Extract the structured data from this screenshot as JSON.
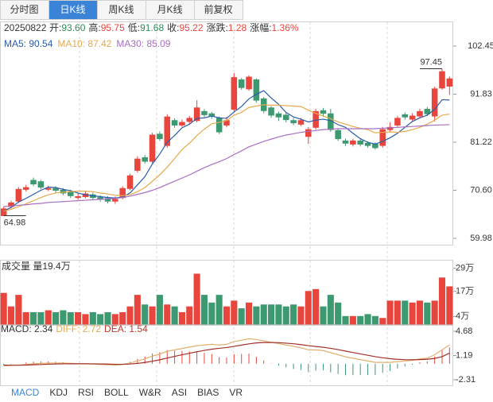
{
  "tabs": {
    "items": [
      "分时图",
      "日K线",
      "周K线",
      "月K线",
      "前复权"
    ],
    "active": 1
  },
  "info": {
    "date": "20250822",
    "fields": [
      {
        "label": "开:",
        "value": "93.60",
        "color": "#2e8b57"
      },
      {
        "label": "高:",
        "value": "95.75",
        "color": "#e8453c"
      },
      {
        "label": "低:",
        "value": "91.68",
        "color": "#2e8b57"
      },
      {
        "label": "收:",
        "value": "95.22",
        "color": "#e8453c"
      },
      {
        "label": "涨跌:",
        "value": "1.28",
        "color": "#e8453c"
      },
      {
        "label": "涨幅:",
        "value": "1.36%",
        "color": "#e8453c"
      }
    ]
  },
  "chart_data": [
    {
      "type": "candlestick",
      "ylim": [
        58.58,
        107.72
      ],
      "yticks": [
        102.45,
        91.83,
        81.22,
        {
          "value": 70.6,
          "label": "70.60"
        },
        59.98
      ],
      "up_color": "#e8453c",
      "down_color": "#3d9970",
      "opens": [
        65.0,
        67.0,
        68.2,
        70.8,
        72.8,
        72.5,
        71.0,
        71.0,
        70.6,
        70.2,
        69.0,
        69.2,
        69.6,
        69.0,
        68.8,
        68.2,
        69.0,
        71.0,
        75.0,
        77.8,
        77.0,
        83.0,
        80.5,
        86.0,
        85.0,
        85.8,
        86.0,
        88.0,
        87.5,
        86.5,
        85.0,
        88.5,
        95.0,
        93.0,
        95.0,
        90.8,
        88.8,
        87.5,
        87.2,
        86.0,
        85.2,
        82.5,
        84.5,
        88.2,
        87.5,
        83.8,
        81.5,
        80.8,
        81.5,
        81.0,
        80.8,
        80.5,
        84.0,
        85.0,
        87.3,
        86.3,
        87.0,
        88.5,
        87.0,
        93.2,
        93.6
      ],
      "highs": [
        67.0,
        68.3,
        71.3,
        71.8,
        73.4,
        72.9,
        71.6,
        71.5,
        71.1,
        70.7,
        69.9,
        70.4,
        70.1,
        69.5,
        69.3,
        69.2,
        71.5,
        74.3,
        78.1,
        78.4,
        83.3,
        83.6,
        87.4,
        86.5,
        86.2,
        87.0,
        90.5,
        88.5,
        87.9,
        86.9,
        86.8,
        96.5,
        95.4,
        96.0,
        95.3,
        91.2,
        89.2,
        88.0,
        87.7,
        86.6,
        86.6,
        84.6,
        88.6,
        88.8,
        88.6,
        84.3,
        82.0,
        82.0,
        82.0,
        81.4,
        81.2,
        84.6,
        85.6,
        87.0,
        87.8,
        87.6,
        88.6,
        89.0,
        93.5,
        97.45,
        95.75
      ],
      "lows": [
        64.98,
        66.6,
        67.8,
        70.3,
        71.5,
        70.8,
        70.4,
        70.1,
        69.5,
        68.9,
        68.5,
        68.8,
        68.5,
        68.1,
        67.7,
        67.6,
        68.6,
        70.6,
        74.5,
        76.5,
        76.6,
        81.5,
        80.0,
        84.4,
        84.6,
        85.2,
        85.6,
        86.8,
        86.4,
        83.0,
        84.5,
        88.0,
        92.8,
        92.6,
        90.0,
        87.6,
        86.6,
        85.9,
        85.6,
        85.0,
        84.8,
        80.8,
        84.0,
        86.8,
        83.5,
        81.5,
        80.4,
        80.3,
        80.3,
        80.0,
        79.6,
        80.0,
        83.5,
        84.6,
        86.2,
        85.8,
        86.5,
        87.0,
        85.8,
        92.8,
        91.68
      ],
      "closes": [
        66.5,
        67.8,
        70.8,
        71.2,
        72.0,
        71.3,
        71.0,
        70.6,
        70.0,
        69.4,
        69.2,
        69.8,
        69.0,
        68.6,
        68.2,
        68.6,
        71.0,
        73.8,
        77.5,
        77.0,
        82.8,
        82.0,
        86.8,
        85.0,
        85.6,
        86.5,
        88.8,
        87.3,
        87.0,
        83.5,
        86.0,
        95.5,
        93.3,
        95.6,
        90.5,
        88.2,
        87.2,
        86.8,
        86.2,
        85.5,
        86.0,
        84.0,
        88.0,
        87.6,
        84.0,
        82.0,
        81.0,
        81.5,
        80.8,
        80.5,
        80.0,
        84.0,
        84.5,
        86.5,
        86.8,
        87.0,
        88.0,
        87.5,
        93.0,
        96.8,
        95.22
      ],
      "series": [
        {
          "name": "MA5",
          "legend_label": "MA5: 90.54",
          "color": "#2a5caa",
          "values": [
            66,
            66.8,
            68,
            68.8,
            69.7,
            70.6,
            71.3,
            71.2,
            70.8,
            70.5,
            70.0,
            69.6,
            69.4,
            69.2,
            69.0,
            68.9,
            69.1,
            70.0,
            71.8,
            73.6,
            76.4,
            78.6,
            81.2,
            82.7,
            84.4,
            85.2,
            86.5,
            86.6,
            87.0,
            86.6,
            86.5,
            87.9,
            89.1,
            90.8,
            91.8,
            92.6,
            91.0,
            89.6,
            87.8,
            86.8,
            86.3,
            85.7,
            86.1,
            86.3,
            86.0,
            85.1,
            84.5,
            83.2,
            82.0,
            81.2,
            80.8,
            81.4,
            82.2,
            83.2,
            84.5,
            85.8,
            86.6,
            87.2,
            88.5,
            90.6,
            90.54
          ]
        },
        {
          "name": "MA10",
          "legend_label": "MA10: 87.42",
          "color": "#e8a94a",
          "values": [
            66,
            66.4,
            67,
            67.6,
            68.3,
            69,
            69.6,
            70,
            70.2,
            70.3,
            70.4,
            70.4,
            70.3,
            70.0,
            69.8,
            69.5,
            69.4,
            69.6,
            70.3,
            71.2,
            72.6,
            74.0,
            75.7,
            77.6,
            79.6,
            81.0,
            82.7,
            84.1,
            85.3,
            85.6,
            86.0,
            87.2,
            87.8,
            88.9,
            89.2,
            89.5,
            89.4,
            89.4,
            89.3,
            89.2,
            89.1,
            88.3,
            87.6,
            87.0,
            86.4,
            85.7,
            85.2,
            84.7,
            84.3,
            84.0,
            83.3,
            83.4,
            83.5,
            83.4,
            83.6,
            84.0,
            84.5,
            85.2,
            86.1,
            87.2,
            87.42
          ]
        },
        {
          "name": "MA30",
          "legend_label": "MA30: 85.09",
          "color": "#a86fc2",
          "values": [
            67,
            67.1,
            67.3,
            67.4,
            67.6,
            67.7,
            67.9,
            68,
            68.1,
            68.2,
            68.3,
            68.4,
            68.5,
            68.6,
            68.7,
            68.8,
            69,
            69.3,
            69.7,
            70.1,
            70.6,
            71.2,
            71.9,
            72.6,
            73.3,
            74,
            74.8,
            75.6,
            76.3,
            76.9,
            77.6,
            78.5,
            79.3,
            80.2,
            80.8,
            81.4,
            81.9,
            82.4,
            82.8,
            83.1,
            83.4,
            83.6,
            83.8,
            84.0,
            84.1,
            84.2,
            84.2,
            84.2,
            84.2,
            84.2,
            84.2,
            84.3,
            84.4,
            84.5,
            84.6,
            84.7,
            84.8,
            84.9,
            85.0,
            85.05,
            85.09
          ]
        }
      ],
      "min_label_index": 0,
      "max_label_index": 59
    },
    {
      "type": "volume",
      "title": "成交量 量19.4万",
      "ylim": [
        0,
        33
      ],
      "yticks": [
        {
          "value": 29,
          "label": "29万"
        },
        {
          "value": 17,
          "label": "17万"
        },
        {
          "value": 4,
          "label": "4万"
        }
      ],
      "values": [
        16,
        9,
        15,
        6,
        6,
        6,
        7,
        6,
        7,
        6,
        6,
        5,
        6,
        5,
        6,
        5,
        6,
        9,
        15,
        10,
        9,
        15,
        10,
        9,
        6,
        9,
        26,
        15,
        11,
        15,
        9,
        12,
        8,
        11,
        9,
        10,
        10,
        10,
        9,
        10,
        9,
        17,
        18,
        9,
        15,
        11,
        4,
        4,
        4,
        5,
        4,
        3,
        12,
        12,
        12,
        11,
        12,
        11,
        12,
        24,
        19.4
      ]
    },
    {
      "type": "macd",
      "ylim": [
        -3.11,
        5.48
      ],
      "yticks": [
        4.68,
        1.19,
        -2.31
      ],
      "legend": [
        {
          "text": "MACD: 2.34",
          "color": "#333333"
        },
        {
          "text": "DIFF: 2.72",
          "color": "#e8a94a"
        },
        {
          "text": "DEA: 1.54",
          "color": "#c0392b"
        }
      ],
      "dif_color": "#e0b070",
      "dea_color": "#a0302a",
      "dif": [
        -0.3,
        -0.25,
        -0.2,
        -0.1,
        0,
        0.05,
        0.1,
        0.1,
        0.1,
        0.05,
        0,
        0,
        -0.05,
        -0.1,
        -0.15,
        -0.2,
        -0.1,
        0.1,
        0.4,
        0.7,
        1.1,
        1.4,
        1.8,
        2.0,
        2.2,
        2.4,
        2.6,
        2.7,
        2.8,
        2.7,
        2.8,
        3.2,
        3.4,
        3.6,
        3.5,
        3.3,
        3.1,
        2.9,
        2.7,
        2.5,
        2.3,
        2.0,
        2.0,
        1.9,
        1.6,
        1.3,
        1.0,
        0.8,
        0.6,
        0.4,
        0.2,
        0.2,
        0.2,
        0.3,
        0.4,
        0.5,
        0.7,
        0.8,
        1.3,
        2.0,
        2.72
      ],
      "dea": [
        -0.2,
        -0.21,
        -0.21,
        -0.19,
        -0.15,
        -0.11,
        -0.07,
        -0.04,
        -0.01,
        0,
        0,
        0,
        -0.01,
        -0.03,
        -0.05,
        -0.08,
        -0.08,
        -0.04,
        0.05,
        0.18,
        0.36,
        0.57,
        0.82,
        1.06,
        1.29,
        1.51,
        1.73,
        1.92,
        2.1,
        2.22,
        2.34,
        2.51,
        2.69,
        2.87,
        3.0,
        3.06,
        3.07,
        3.04,
        2.97,
        2.88,
        2.76,
        2.61,
        2.49,
        2.37,
        2.22,
        2.04,
        1.83,
        1.62,
        1.42,
        1.22,
        1.02,
        0.86,
        0.73,
        0.64,
        0.59,
        0.57,
        0.6,
        0.64,
        0.77,
        1.02,
        1.54
      ],
      "values": [
        -0.2,
        -0.08,
        0.02,
        0.18,
        0.3,
        0.32,
        0.34,
        0.28,
        0.22,
        0.1,
        0,
        0,
        -0.08,
        -0.14,
        -0.2,
        -0.24,
        -0.04,
        0.28,
        0.7,
        1.04,
        1.48,
        1.66,
        1.96,
        1.88,
        1.82,
        1.78,
        1.74,
        1.56,
        1.4,
        0.96,
        0.92,
        1.38,
        1.42,
        1.46,
        1.0,
        0.48,
        0.06,
        -0.28,
        -0.54,
        -0.76,
        -0.92,
        -1.22,
        -0.98,
        -0.94,
        -1.24,
        -1.48,
        -1.66,
        -1.64,
        -1.64,
        -1.64,
        -1.64,
        -1.32,
        -1.06,
        -0.68,
        -0.38,
        -0.14,
        0.2,
        0.32,
        1.06,
        1.96,
        2.34
      ]
    }
  ],
  "indicator_tabs": {
    "items": [
      "MACD",
      "KDJ",
      "RSI",
      "BOLL",
      "W&R",
      "ASI",
      "BIAS",
      "VR"
    ],
    "active": 0
  }
}
